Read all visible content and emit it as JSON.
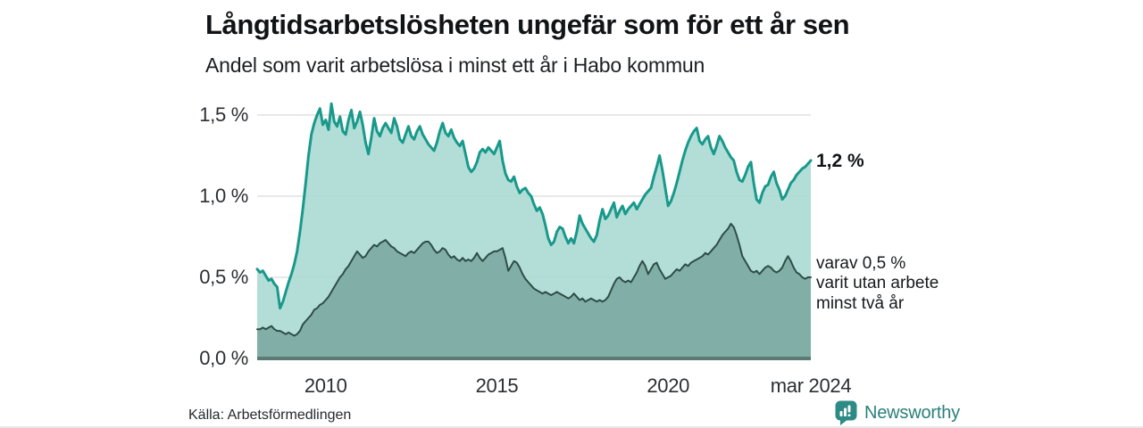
{
  "header": {
    "title": "Långtidsarbetslösheten ungefär som för ett år sen",
    "subtitle": "Andel som varit arbetslösa i minst ett år i Habo kommun"
  },
  "chart_data": {
    "type": "area",
    "title": "Långtidsarbetslösheten ungefär som för ett år sen",
    "subtitle": "Andel som varit arbetslösa i minst ett år i Habo kommun",
    "unit": "%",
    "frequency": "monthly",
    "x_range": [
      "2008-01",
      "2024-03"
    ],
    "ylim": [
      0,
      1.6
    ],
    "grid": "horizontal",
    "legend_position": "right-annotations",
    "yticks": [
      {
        "label": "1,5 %",
        "value": 1.5
      },
      {
        "label": "1,0 %",
        "value": 1.0
      },
      {
        "label": "0,5 %",
        "value": 0.5
      },
      {
        "label": "0,0 %",
        "value": 0.0
      }
    ],
    "xticks": [
      {
        "label": "2010",
        "month": "2010-01"
      },
      {
        "label": "2015",
        "month": "2015-01"
      },
      {
        "label": "2020",
        "month": "2020-01"
      },
      {
        "label": "mar 2024",
        "month": "2024-03"
      }
    ],
    "series": [
      {
        "name": "Andel som varit arbetslösa i minst ett år",
        "end_label": "1,2 %",
        "end_value": 1.2,
        "line_color": "#18998b",
        "fill_color": "#a9dad2",
        "values": [
          0.55,
          0.53,
          0.54,
          0.51,
          0.48,
          0.49,
          0.46,
          0.44,
          0.31,
          0.35,
          0.41,
          0.47,
          0.52,
          0.58,
          0.66,
          0.78,
          0.92,
          1.08,
          1.25,
          1.38,
          1.45,
          1.5,
          1.54,
          1.44,
          1.47,
          1.41,
          1.57,
          1.46,
          1.43,
          1.49,
          1.4,
          1.38,
          1.47,
          1.53,
          1.42,
          1.46,
          1.52,
          1.44,
          1.33,
          1.26,
          1.36,
          1.48,
          1.4,
          1.37,
          1.42,
          1.45,
          1.42,
          1.39,
          1.48,
          1.43,
          1.35,
          1.33,
          1.38,
          1.43,
          1.37,
          1.35,
          1.4,
          1.43,
          1.38,
          1.35,
          1.32,
          1.3,
          1.28,
          1.33,
          1.4,
          1.45,
          1.39,
          1.37,
          1.41,
          1.36,
          1.33,
          1.31,
          1.34,
          1.26,
          1.18,
          1.15,
          1.17,
          1.21,
          1.27,
          1.29,
          1.27,
          1.3,
          1.28,
          1.26,
          1.3,
          1.34,
          1.22,
          1.14,
          1.1,
          1.09,
          1.12,
          1.06,
          1.02,
          1.04,
          1.05,
          1.02,
          1.0,
          0.95,
          0.91,
          0.93,
          0.89,
          0.82,
          0.74,
          0.7,
          0.72,
          0.78,
          0.81,
          0.8,
          0.75,
          0.71,
          0.74,
          0.71,
          0.78,
          0.88,
          0.83,
          0.8,
          0.77,
          0.74,
          0.72,
          0.76,
          0.85,
          0.92,
          0.86,
          0.88,
          0.92,
          0.96,
          0.87,
          0.91,
          0.94,
          0.89,
          0.92,
          0.94,
          0.96,
          0.92,
          0.95,
          0.98,
          1.01,
          1.03,
          1.05,
          1.12,
          1.18,
          1.25,
          1.16,
          1.05,
          0.94,
          0.97,
          1.02,
          1.08,
          1.15,
          1.22,
          1.28,
          1.33,
          1.37,
          1.4,
          1.42,
          1.34,
          1.32,
          1.35,
          1.37,
          1.3,
          1.26,
          1.31,
          1.37,
          1.34,
          1.3,
          1.27,
          1.24,
          1.22,
          1.15,
          1.1,
          1.09,
          1.13,
          1.18,
          1.21,
          1.08,
          0.98,
          0.96,
          1.02,
          1.06,
          1.07,
          1.12,
          1.15,
          1.08,
          1.04,
          0.98,
          1.0,
          1.04,
          1.08,
          1.1,
          1.13,
          1.15,
          1.17,
          1.18,
          1.2,
          1.22
        ]
      },
      {
        "name": "varav varit utan arbete minst två år",
        "end_label": "varav 0,5 % varit utan arbete minst två år",
        "end_value": 0.5,
        "line_color": "#2e4d47",
        "fill_color": "#7aa8a0",
        "values": [
          0.18,
          0.18,
          0.19,
          0.18,
          0.19,
          0.2,
          0.18,
          0.17,
          0.17,
          0.16,
          0.15,
          0.16,
          0.15,
          0.14,
          0.15,
          0.17,
          0.21,
          0.23,
          0.25,
          0.27,
          0.3,
          0.31,
          0.33,
          0.34,
          0.36,
          0.38,
          0.41,
          0.44,
          0.47,
          0.5,
          0.52,
          0.55,
          0.57,
          0.6,
          0.63,
          0.66,
          0.64,
          0.62,
          0.63,
          0.66,
          0.68,
          0.7,
          0.69,
          0.71,
          0.72,
          0.73,
          0.71,
          0.69,
          0.68,
          0.66,
          0.65,
          0.64,
          0.63,
          0.65,
          0.66,
          0.65,
          0.67,
          0.69,
          0.71,
          0.72,
          0.72,
          0.7,
          0.67,
          0.65,
          0.66,
          0.68,
          0.67,
          0.64,
          0.62,
          0.63,
          0.61,
          0.6,
          0.62,
          0.6,
          0.61,
          0.6,
          0.62,
          0.65,
          0.62,
          0.6,
          0.62,
          0.64,
          0.65,
          0.66,
          0.66,
          0.67,
          0.68,
          0.62,
          0.54,
          0.57,
          0.6,
          0.59,
          0.56,
          0.52,
          0.49,
          0.47,
          0.45,
          0.43,
          0.42,
          0.41,
          0.4,
          0.41,
          0.4,
          0.39,
          0.4,
          0.41,
          0.4,
          0.39,
          0.38,
          0.37,
          0.38,
          0.4,
          0.38,
          0.36,
          0.37,
          0.35,
          0.36,
          0.37,
          0.36,
          0.35,
          0.36,
          0.35,
          0.36,
          0.38,
          0.42,
          0.46,
          0.49,
          0.5,
          0.48,
          0.47,
          0.48,
          0.47,
          0.5,
          0.53,
          0.57,
          0.6,
          0.57,
          0.52,
          0.55,
          0.58,
          0.59,
          0.55,
          0.52,
          0.49,
          0.5,
          0.51,
          0.53,
          0.55,
          0.54,
          0.56,
          0.58,
          0.57,
          0.59,
          0.6,
          0.61,
          0.62,
          0.63,
          0.65,
          0.64,
          0.66,
          0.68,
          0.7,
          0.73,
          0.76,
          0.78,
          0.8,
          0.83,
          0.81,
          0.76,
          0.7,
          0.63,
          0.6,
          0.57,
          0.54,
          0.53,
          0.54,
          0.52,
          0.54,
          0.56,
          0.57,
          0.56,
          0.54,
          0.53,
          0.54,
          0.56,
          0.6,
          0.63,
          0.6,
          0.56,
          0.53,
          0.52,
          0.5,
          0.49,
          0.5,
          0.5
        ]
      }
    ]
  },
  "annotations": {
    "total": "1,2 %",
    "subset": "varav 0,5 %\nvarit utan arbete\nminst två år"
  },
  "footer": {
    "source": "Källa: Arbetsförmedlingen",
    "brand": "Newsworthy"
  },
  "colors": {
    "accent_teal": "#18998b",
    "fill_light": "#a9dad2",
    "fill_dark": "#7aa8a0",
    "line_dark": "#2e4d47",
    "baseline": "#5b7a74",
    "gridline": "#d9d9d9",
    "brand_teal": "#2e8a84"
  }
}
